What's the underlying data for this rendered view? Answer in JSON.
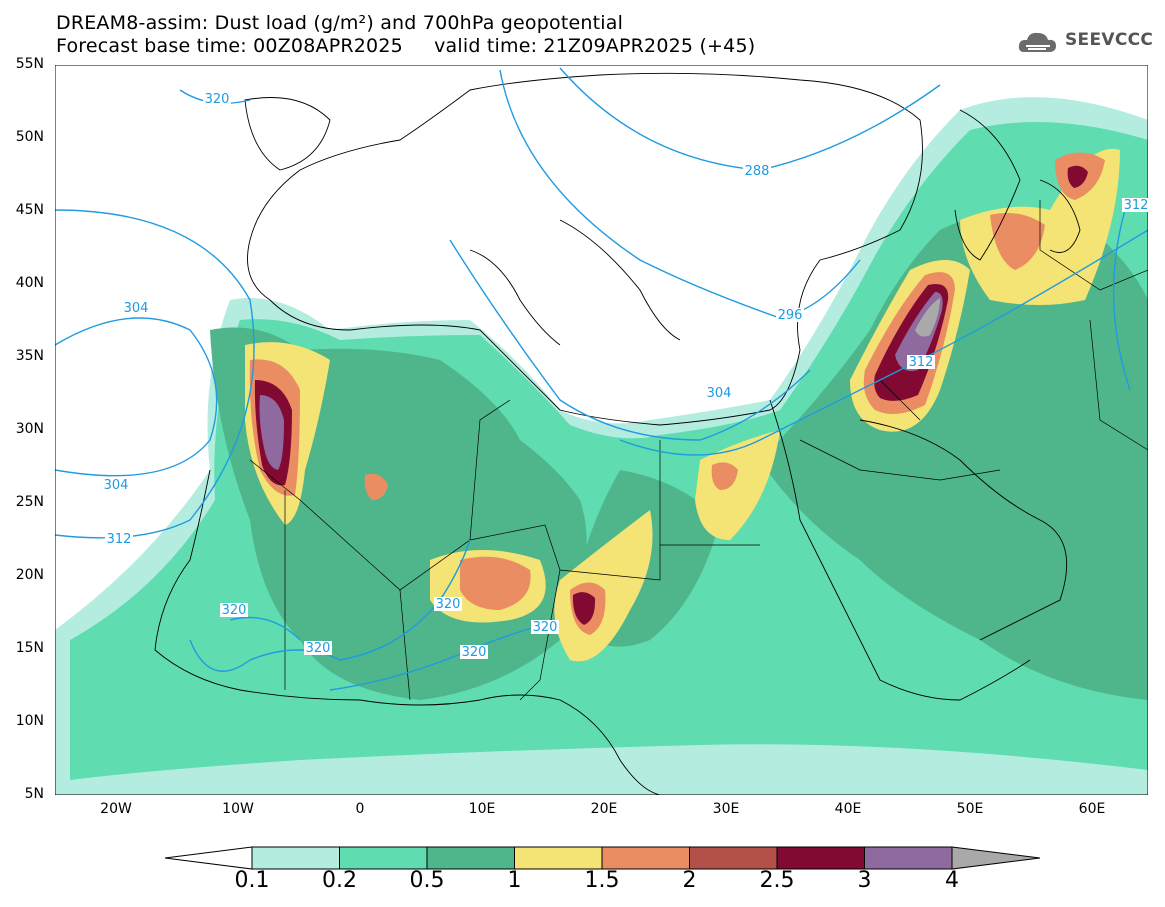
{
  "title": {
    "line1": "DREAM8-assim: Dust load (g/m²) and 700hPa geopotential",
    "line2": "Forecast base time: 00Z08APR2025     valid time: 21Z09APR2025 (+45)"
  },
  "logo": {
    "text": "SEEVCCC",
    "icon": "cloud-icon"
  },
  "axes": {
    "lat_ticks": [
      "55N",
      "50N",
      "45N",
      "40N",
      "35N",
      "30N",
      "25N",
      "20N",
      "15N",
      "10N",
      "5N"
    ],
    "lon_ticks": [
      "20W",
      "10W",
      "0",
      "10E",
      "20E",
      "30E",
      "40E",
      "50E",
      "60E"
    ]
  },
  "contour_labels": [
    {
      "text": "320"
    },
    {
      "text": "288"
    },
    {
      "text": "312"
    },
    {
      "text": "304"
    },
    {
      "text": "296"
    },
    {
      "text": "304"
    },
    {
      "text": "304"
    },
    {
      "text": "312"
    },
    {
      "text": "312"
    },
    {
      "text": "320"
    },
    {
      "text": "320"
    },
    {
      "text": "320"
    },
    {
      "text": "320"
    },
    {
      "text": "320"
    }
  ],
  "colorbar": {
    "labels": [
      "0.1",
      "0.2",
      "0.5",
      "1",
      "1.5",
      "2",
      "2.5",
      "3",
      "4"
    ],
    "colors": [
      "#b4ede0",
      "#5fdcb0",
      "#4fb68c",
      "#f4e375",
      "#ea8d63",
      "#b3504a",
      "#820a32",
      "#8f6a9e",
      "#a9a9a9"
    ]
  }
}
